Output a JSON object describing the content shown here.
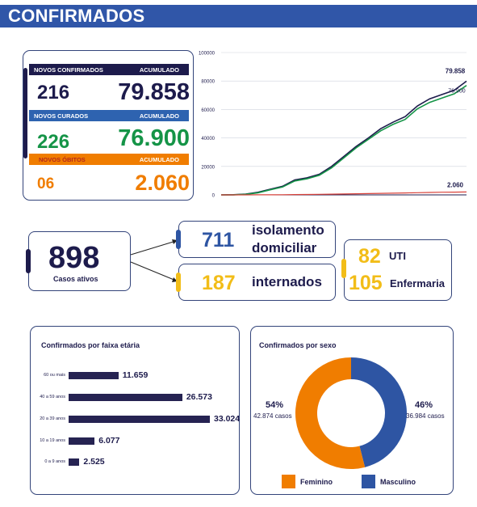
{
  "header": {
    "title": "CONFIRMADOS"
  },
  "stats": {
    "confirmados": {
      "label": "NOVOS CONFIRMADOS",
      "acumulado_label": "ACUMULADO",
      "new": "216",
      "total": "79.858"
    },
    "curados": {
      "label": "NOVOS CURADOS",
      "acumulado_label": "ACUMULADO",
      "new": "226",
      "total": "76.900"
    },
    "obitos": {
      "label": "NOVOS ÓBITOS",
      "acumulado_label": "ACUMULADO",
      "new": "06",
      "total": "2.060"
    }
  },
  "colors": {
    "navy": "#1d1b4c",
    "blue": "#2e63b0",
    "green": "#159447",
    "orange": "#f07d00",
    "red": "#d9433b",
    "yellow": "#f2bd18",
    "header": "#3056a8"
  },
  "active_cases": {
    "total": "898",
    "total_label": "Casos ativos",
    "isolamento": {
      "value": "711",
      "label_line1": "isolamento",
      "label_line2": "domiciliar"
    },
    "internados": {
      "value": "187",
      "label": "internados"
    },
    "uti": {
      "value": "82",
      "label": "UTI"
    },
    "enfermaria": {
      "value": "105",
      "label": "Enfermaria"
    }
  },
  "chart_data": [
    {
      "type": "line",
      "title": "",
      "xlabel": "",
      "ylabel": "",
      "ylim": [
        0,
        100000
      ],
      "yticks": [
        "0",
        "20000",
        "40000",
        "60000",
        "80000",
        "100000"
      ],
      "x": [
        0,
        5,
        10,
        15,
        20,
        25,
        30,
        35,
        40,
        45,
        50,
        55,
        60,
        65,
        70,
        75,
        80,
        85,
        90,
        95,
        100
      ],
      "series": [
        {
          "name": "",
          "color": "#1d1b4c",
          "values": [
            0,
            100,
            500,
            1800,
            4000,
            6000,
            10500,
            12000,
            14500,
            20000,
            27000,
            34000,
            40000,
            46500,
            51000,
            55000,
            62500,
            67500,
            70500,
            73500,
            79858
          ],
          "end_label": "79.858"
        },
        {
          "name": "",
          "color": "#159447",
          "values": [
            0,
            80,
            400,
            1500,
            3600,
            5500,
            9800,
            11300,
            13800,
            19000,
            26000,
            33000,
            39000,
            45000,
            49500,
            53000,
            60500,
            65000,
            68000,
            71000,
            76900
          ],
          "end_label": "76.900"
        },
        {
          "name": "",
          "color": "#d9433b",
          "values": [
            0,
            0,
            10,
            40,
            80,
            140,
            220,
            300,
            400,
            520,
            650,
            780,
            920,
            1070,
            1220,
            1380,
            1540,
            1700,
            1850,
            1960,
            2060
          ],
          "end_label": "2.060"
        }
      ]
    },
    {
      "type": "bar",
      "orientation": "horizontal",
      "title": "Confirmados por faixa etária",
      "categories": [
        "60 ou mais",
        "40 a 59 anos",
        "20 a 39 anos",
        "10 a 19 anos",
        "0 a 9 anos"
      ],
      "values": [
        11659,
        26573,
        33024,
        6077,
        2525
      ],
      "labels": [
        "11.659",
        "26.573",
        "33.024",
        "6.077",
        "2.525"
      ]
    },
    {
      "type": "pie",
      "donut": true,
      "title": "Confirmados por sexo",
      "categories": [
        "Feminino",
        "Masculino"
      ],
      "values": [
        54,
        46
      ],
      "counts": [
        "42.874 casos",
        "36.984 casos"
      ],
      "percent_labels": [
        "54%",
        "46%"
      ],
      "colors": [
        "#f07d00",
        "#2e55a3"
      ]
    }
  ]
}
